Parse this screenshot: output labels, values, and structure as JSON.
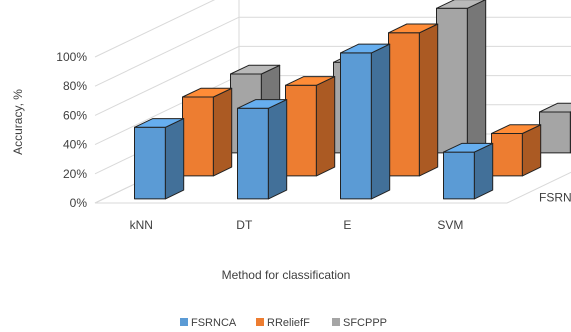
{
  "chart_data": {
    "type": "bar",
    "variant": "3d-clustered-depth",
    "title": "",
    "xlabel": "Method for classification",
    "ylabel": "Accuracy, %",
    "ylim": [
      0,
      100
    ],
    "y_ticks": [
      "0%",
      "20%",
      "40%",
      "60%",
      "80%",
      "100%"
    ],
    "grid": true,
    "legend_position": "bottom",
    "categories": [
      "kNN",
      "DT",
      "E",
      "SVM"
    ],
    "series": [
      {
        "name": "FSRNCA",
        "color": "#5b9bd5",
        "values": [
          49,
          62,
          100,
          32
        ]
      },
      {
        "name": "RReliefF",
        "color": "#ed7d31",
        "values": [
          54,
          62,
          98,
          29
        ]
      },
      {
        "name": "SFCPPP",
        "color": "#a5a5a5",
        "values": [
          54,
          62,
          99,
          28
        ]
      }
    ]
  }
}
